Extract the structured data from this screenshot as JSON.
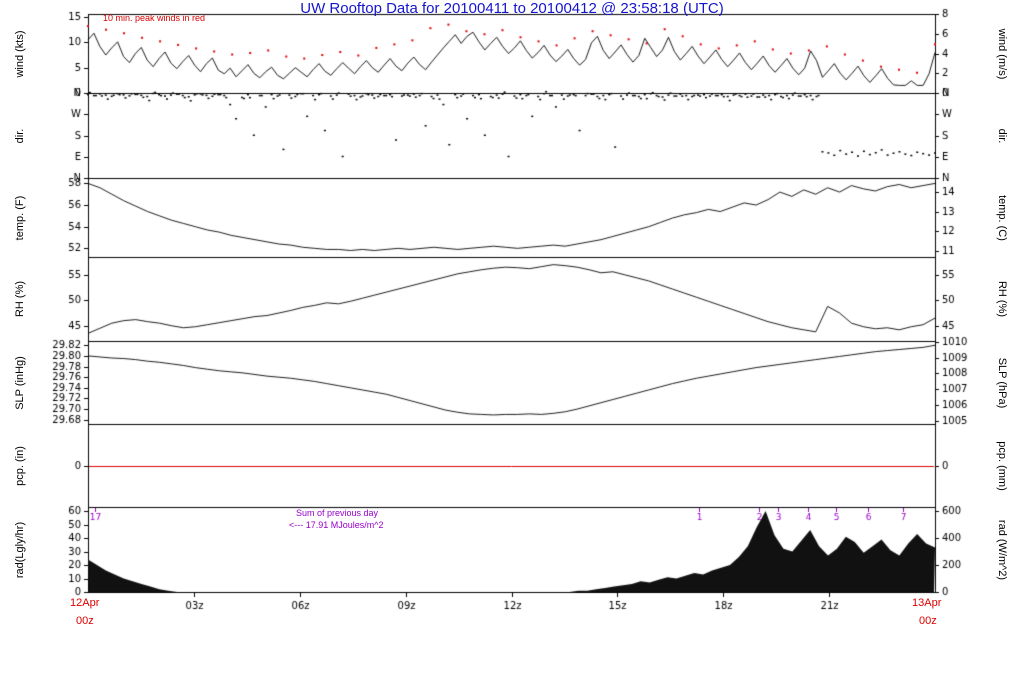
{
  "title": "UW Rooftop Data for 20100411  to  20100412 @ 23:58:18  (UTC)",
  "colors": {
    "trace": "#000000",
    "peak_wind": "#dd0000",
    "precip_line": "#dd0000",
    "annotation_red": "#dd0000",
    "purple": "#9900cc",
    "title_blue": "#1515cf"
  },
  "x_axis": {
    "start_date": "12Apr",
    "start_time": "00z",
    "end_date": "13Apr",
    "end_time": "00z",
    "ticks": [
      "03z",
      "06z",
      "09z",
      "12z",
      "15z",
      "18z",
      "21z"
    ],
    "tick_hours": [
      3,
      6,
      9,
      12,
      15,
      18,
      21
    ],
    "hours_span": 24
  },
  "chart_data": [
    {
      "panel": "wind",
      "type": "line",
      "ylabel_left": "wind (kts)",
      "ylabel_right": "wind (m/s)",
      "ylim": [
        0,
        15.6
      ],
      "ylim_right": [
        0,
        8.02
      ],
      "yticks_left": {
        "values": [
          0,
          5,
          10,
          15
        ],
        "labels": [
          "0",
          "5",
          "10",
          "15"
        ]
      },
      "yticks_right": {
        "values": [
          0,
          2,
          4,
          6,
          8
        ],
        "labels": [
          "0",
          "2",
          "4",
          "6",
          "8"
        ]
      },
      "annotation": "10 min. peak winds in red",
      "series": [
        {
          "name": "wind_speed_kts",
          "type": "line",
          "color": "#000000",
          "values": [
            10.5,
            11.8,
            9.2,
            7.5,
            8.9,
            10.1,
            7.2,
            6.0,
            7.8,
            9.0,
            6.5,
            5.2,
            6.8,
            8.1,
            5.9,
            4.8,
            6.2,
            7.4,
            5.5,
            4.2,
            5.8,
            6.9,
            4.5,
            3.8,
            4.9,
            3.2,
            4.4,
            5.6,
            3.9,
            3.0,
            4.2,
            5.1,
            3.5,
            2.8,
            3.9,
            5.0,
            4.1,
            3.2,
            4.6,
            5.8,
            4.3,
            3.5,
            4.8,
            6.0,
            4.9,
            3.8,
            5.2,
            6.4,
            5.0,
            4.1,
            5.5,
            6.8,
            5.3,
            4.4,
            5.9,
            7.1,
            5.6,
            4.6,
            6.1,
            7.5,
            8.9,
            10.2,
            11.5,
            9.8,
            11.2,
            12.0,
            10.1,
            8.5,
            9.8,
            11.0,
            9.2,
            7.8,
            8.9,
            10.3,
            8.4,
            6.9,
            8.0,
            9.4,
            7.5,
            6.2,
            7.3,
            8.6,
            6.8,
            5.5,
            6.6,
            9.9,
            11.2,
            8.4,
            6.8,
            8.1,
            9.5,
            7.6,
            6.1,
            7.4,
            10.8,
            9.0,
            7.2,
            8.5,
            11.0,
            8.2,
            6.5,
            7.8,
            9.2,
            7.3,
            5.8,
            7.1,
            8.5,
            6.6,
            5.2,
            6.5,
            7.9,
            6.0,
            4.6,
            5.9,
            7.3,
            5.4,
            4.1,
            5.4,
            6.8,
            4.9,
            3.6,
            4.9,
            8.3,
            6.4,
            3.1,
            4.4,
            5.8,
            3.9,
            2.6,
            3.9,
            5.3,
            3.4,
            2.1,
            3.4,
            4.8,
            2.9,
            1.6,
            1.5,
            1.5,
            2.4,
            1.5,
            1.5,
            3.8,
            8.0
          ]
        },
        {
          "name": "peak_wind_kts",
          "type": "dots",
          "color": "#dd0000",
          "values": [
            13.2,
            12.5,
            11.8,
            10.9,
            10.2,
            9.5,
            8.8,
            8.2,
            7.6,
            7.9,
            8.4,
            7.2,
            6.8,
            7.5,
            8.1,
            7.4,
            8.9,
            9.6,
            10.4,
            12.8,
            13.5,
            12.2,
            11.6,
            12.4,
            11.0,
            10.2,
            9.4,
            10.8,
            12.2,
            11.4,
            10.6,
            9.8,
            12.6,
            11.2,
            9.6,
            8.8,
            9.4,
            10.2,
            8.6,
            7.8,
            8.4,
            9.2,
            7.6,
            6.4,
            5.2,
            4.6,
            4.0,
            9.6
          ]
        }
      ]
    },
    {
      "panel": "direction",
      "type": "scatter",
      "ylabel_left": "dir.",
      "ylabel_right": "dir.",
      "ylim": [
        0,
        360
      ],
      "yticks_left": {
        "values": [
          360,
          270,
          180,
          90,
          0
        ],
        "labels": [
          "N",
          "W",
          "S",
          "E",
          "N"
        ]
      },
      "yticks_right": {
        "values": [
          360,
          270,
          180,
          90,
          0
        ],
        "labels": [
          "N",
          "W",
          "S",
          "E",
          "N"
        ]
      },
      "series": [
        {
          "name": "wind_direction_deg",
          "type": "dir-dots",
          "color": "#000000",
          "values": [
            352,
            348,
            355,
            350,
            345,
            356,
            351,
            347,
            353,
            349,
            344,
            357,
            352,
            346,
            350,
            354,
            348,
            343,
            351,
            355,
            349,
            345,
            352,
            348,
            310,
            250,
            340,
            352,
            180,
            348,
            300,
            352,
            346,
            120,
            350,
            344,
            356,
            260,
            348,
            352,
            200,
            346,
            350,
            90,
            354,
            348,
            342,
            356,
            350,
            344,
            348,
            352,
            160,
            346,
            350,
            354,
            348,
            220,
            344,
            350,
            310,
            140,
            352,
            346,
            250,
            348,
            352,
            180,
            344,
            350,
            354,
            90,
            346,
            352,
            348,
            260,
            344,
            356,
            348,
            300,
            350,
            346,
            352,
            200,
            348,
            354,
            344,
            348,
            352,
            130,
            346,
            350,
            348,
            344,
            352,
            356,
            348,
            342,
            350,
            346,
            354,
            348,
            344,
            350,
            352,
            346,
            348,
            352,
            344,
            350,
            348,
            354,
            346,
            342,
            350,
            348,
            352,
            344,
            348,
            350,
            346,
            352,
            348,
            344,
            110,
            105,
            95,
            115,
            100,
            108,
            92,
            112,
            98,
            106,
            118,
            96,
            104,
            110,
            100,
            94,
            108,
            102,
            96,
            105
          ]
        }
      ]
    },
    {
      "panel": "temperature",
      "type": "line",
      "ylabel_left": "temp. (F)",
      "ylabel_right": "temp. (C)",
      "ylim": [
        51.2,
        58.5
      ],
      "ylim_right": [
        10.67,
        14.72
      ],
      "yticks_left": {
        "values": [
          52,
          54,
          56,
          58
        ],
        "labels": [
          "52",
          "54",
          "56",
          "58"
        ]
      },
      "yticks_right": {
        "values": [
          11,
          12,
          13,
          14
        ],
        "labels": [
          "11",
          "12",
          "13",
          "14"
        ]
      },
      "series": [
        {
          "name": "temp_f",
          "type": "line",
          "color": "#000000",
          "values": [
            58.0,
            57.6,
            57.0,
            56.4,
            55.9,
            55.4,
            55.0,
            54.6,
            54.3,
            54.0,
            53.7,
            53.5,
            53.2,
            53.0,
            52.8,
            52.6,
            52.4,
            52.3,
            52.1,
            52.0,
            51.9,
            51.9,
            51.8,
            51.9,
            51.8,
            51.9,
            52.0,
            51.9,
            52.0,
            52.1,
            52.0,
            51.9,
            52.0,
            52.1,
            52.2,
            52.1,
            52.0,
            52.1,
            52.2,
            52.3,
            52.2,
            52.4,
            52.6,
            52.8,
            53.1,
            53.4,
            53.7,
            54.0,
            54.4,
            54.8,
            55.1,
            55.3,
            55.6,
            55.4,
            55.8,
            56.2,
            56.0,
            56.5,
            57.2,
            56.8,
            57.4,
            57.0,
            57.6,
            57.2,
            57.8,
            57.5,
            57.3,
            57.7,
            57.9,
            57.6,
            57.8,
            58.0
          ]
        }
      ]
    },
    {
      "panel": "relative_humidity",
      "type": "line",
      "ylabel_left": "RH (%)",
      "ylabel_right": "RH (%)",
      "ylim": [
        42,
        58.5
      ],
      "yticks_left": {
        "values": [
          45,
          50,
          55
        ],
        "labels": [
          "45",
          "50",
          "55"
        ]
      },
      "yticks_right": {
        "values": [
          45,
          50,
          55
        ],
        "labels": [
          "45",
          "50",
          "55"
        ]
      },
      "series": [
        {
          "name": "rh_pct",
          "type": "line",
          "color": "#000000",
          "values": [
            43.5,
            44.5,
            45.5,
            46.0,
            46.2,
            45.8,
            45.5,
            45.0,
            44.6,
            44.8,
            45.2,
            45.6,
            46.0,
            46.4,
            46.8,
            47.0,
            47.5,
            48.0,
            48.6,
            49.0,
            49.5,
            49.3,
            49.8,
            50.4,
            51.0,
            51.6,
            52.2,
            52.8,
            53.4,
            54.0,
            54.6,
            55.2,
            55.6,
            56.0,
            56.3,
            56.5,
            56.4,
            56.2,
            56.6,
            57.0,
            56.8,
            56.5,
            56.0,
            55.4,
            55.6,
            55.0,
            54.4,
            53.8,
            53.0,
            52.2,
            51.4,
            50.6,
            49.8,
            49.0,
            48.2,
            47.4,
            46.6,
            45.8,
            45.2,
            44.6,
            44.2,
            43.8,
            48.8,
            47.5,
            45.5,
            44.8,
            44.4,
            44.6,
            44.2,
            44.8,
            45.2,
            46.5
          ]
        }
      ]
    },
    {
      "panel": "sea_level_pressure",
      "type": "line",
      "ylabel_left": "SLP (inHg)",
      "ylabel_right": "SLP (hPa)",
      "ylim": [
        29.672,
        29.828
      ],
      "ylim_right": [
        1004.78,
        1010.06
      ],
      "yticks_left": {
        "values": [
          29.68,
          29.7,
          29.72,
          29.74,
          29.76,
          29.78,
          29.8,
          29.82
        ],
        "labels": [
          "29.68",
          "29.70",
          "29.72",
          "29.74",
          "29.76",
          "29.78",
          "29.80",
          "29.82"
        ]
      },
      "yticks_right": {
        "values": [
          1005,
          1006,
          1007,
          1008,
          1009,
          1010
        ],
        "labels": [
          "1005",
          "1006",
          "1007",
          "1008",
          "1009",
          "1010"
        ]
      },
      "series": [
        {
          "name": "slp_inhg",
          "type": "line",
          "color": "#000000",
          "values": [
            29.8,
            29.798,
            29.796,
            29.795,
            29.793,
            29.79,
            29.788,
            29.785,
            29.782,
            29.778,
            29.775,
            29.772,
            29.77,
            29.768,
            29.765,
            29.762,
            29.76,
            29.758,
            29.755,
            29.752,
            29.748,
            29.744,
            29.74,
            29.736,
            29.732,
            29.728,
            29.722,
            29.716,
            29.71,
            29.704,
            29.698,
            29.694,
            29.691,
            29.69,
            29.689,
            29.69,
            29.69,
            29.691,
            29.69,
            29.692,
            29.695,
            29.7,
            29.706,
            29.712,
            29.718,
            29.724,
            29.73,
            29.736,
            29.742,
            29.748,
            29.753,
            29.758,
            29.762,
            29.766,
            29.77,
            29.774,
            29.778,
            29.781,
            29.784,
            29.787,
            29.79,
            29.793,
            29.796,
            29.799,
            29.802,
            29.805,
            29.808,
            29.81,
            29.812,
            29.814,
            29.816,
            29.82
          ]
        }
      ]
    },
    {
      "panel": "precipitation",
      "type": "line",
      "ylabel_left": "pcp. (in)",
      "ylabel_right": "pcp. (mm)",
      "ylim": [
        -0.5,
        0.5
      ],
      "yticks_left": {
        "values": [
          0
        ],
        "labels": [
          "0"
        ]
      },
      "yticks_right": {
        "values": [
          0
        ],
        "labels": [
          "0"
        ]
      },
      "series": [
        {
          "name": "precip",
          "type": "hline",
          "color": "#dd0000",
          "value": 0
        }
      ]
    },
    {
      "panel": "radiation",
      "type": "area",
      "ylabel_left": "rad(Lgly/hr)",
      "ylabel_right": "rad (W/m^2)",
      "ylim": [
        0,
        63
      ],
      "ylim_right": [
        0,
        630
      ],
      "yticks_left": {
        "values": [
          0,
          10,
          20,
          30,
          40,
          50,
          60
        ],
        "labels": [
          "0",
          "10",
          "20",
          "30",
          "40",
          "50",
          "60"
        ]
      },
      "yticks_right": {
        "values": [
          0,
          200,
          400,
          600
        ],
        "labels": [
          "0",
          "200",
          "400",
          "600"
        ]
      },
      "annotations": {
        "sum_line1": "Sum of previous day",
        "sum_line2": "<--- 17.91 MJoules/m^2"
      },
      "markers": [
        {
          "label": "17",
          "t": 0.2
        },
        {
          "label": "1",
          "t": 17.3
        },
        {
          "label": "2",
          "t": 19.0
        },
        {
          "label": "3",
          "t": 19.55
        },
        {
          "label": "4",
          "t": 20.4
        },
        {
          "label": "5",
          "t": 21.2
        },
        {
          "label": "6",
          "t": 22.1
        },
        {
          "label": "7",
          "t": 23.1
        }
      ],
      "series": [
        {
          "name": "solar_radiation",
          "type": "area",
          "color": "#111111",
          "values": [
            24,
            20,
            16,
            13,
            10,
            8,
            6,
            4,
            2,
            1,
            0,
            0,
            0,
            0,
            0,
            0,
            0,
            0,
            0,
            0,
            0,
            0,
            0,
            0,
            0,
            0,
            0,
            0,
            0,
            0,
            0,
            0,
            0,
            0,
            0,
            0,
            0,
            0,
            0,
            0,
            0,
            0,
            0,
            0,
            0,
            0,
            0,
            0,
            0,
            0,
            0,
            0,
            0,
            0,
            0,
            1,
            1,
            2,
            3,
            4,
            5,
            6,
            8,
            7,
            9,
            11,
            10,
            12,
            14,
            13,
            16,
            18,
            20,
            26,
            34,
            48,
            60,
            42,
            32,
            30,
            38,
            46,
            34,
            27,
            32,
            41,
            37,
            29,
            34,
            39,
            31,
            27,
            36,
            43,
            36,
            33
          ]
        }
      ]
    }
  ]
}
